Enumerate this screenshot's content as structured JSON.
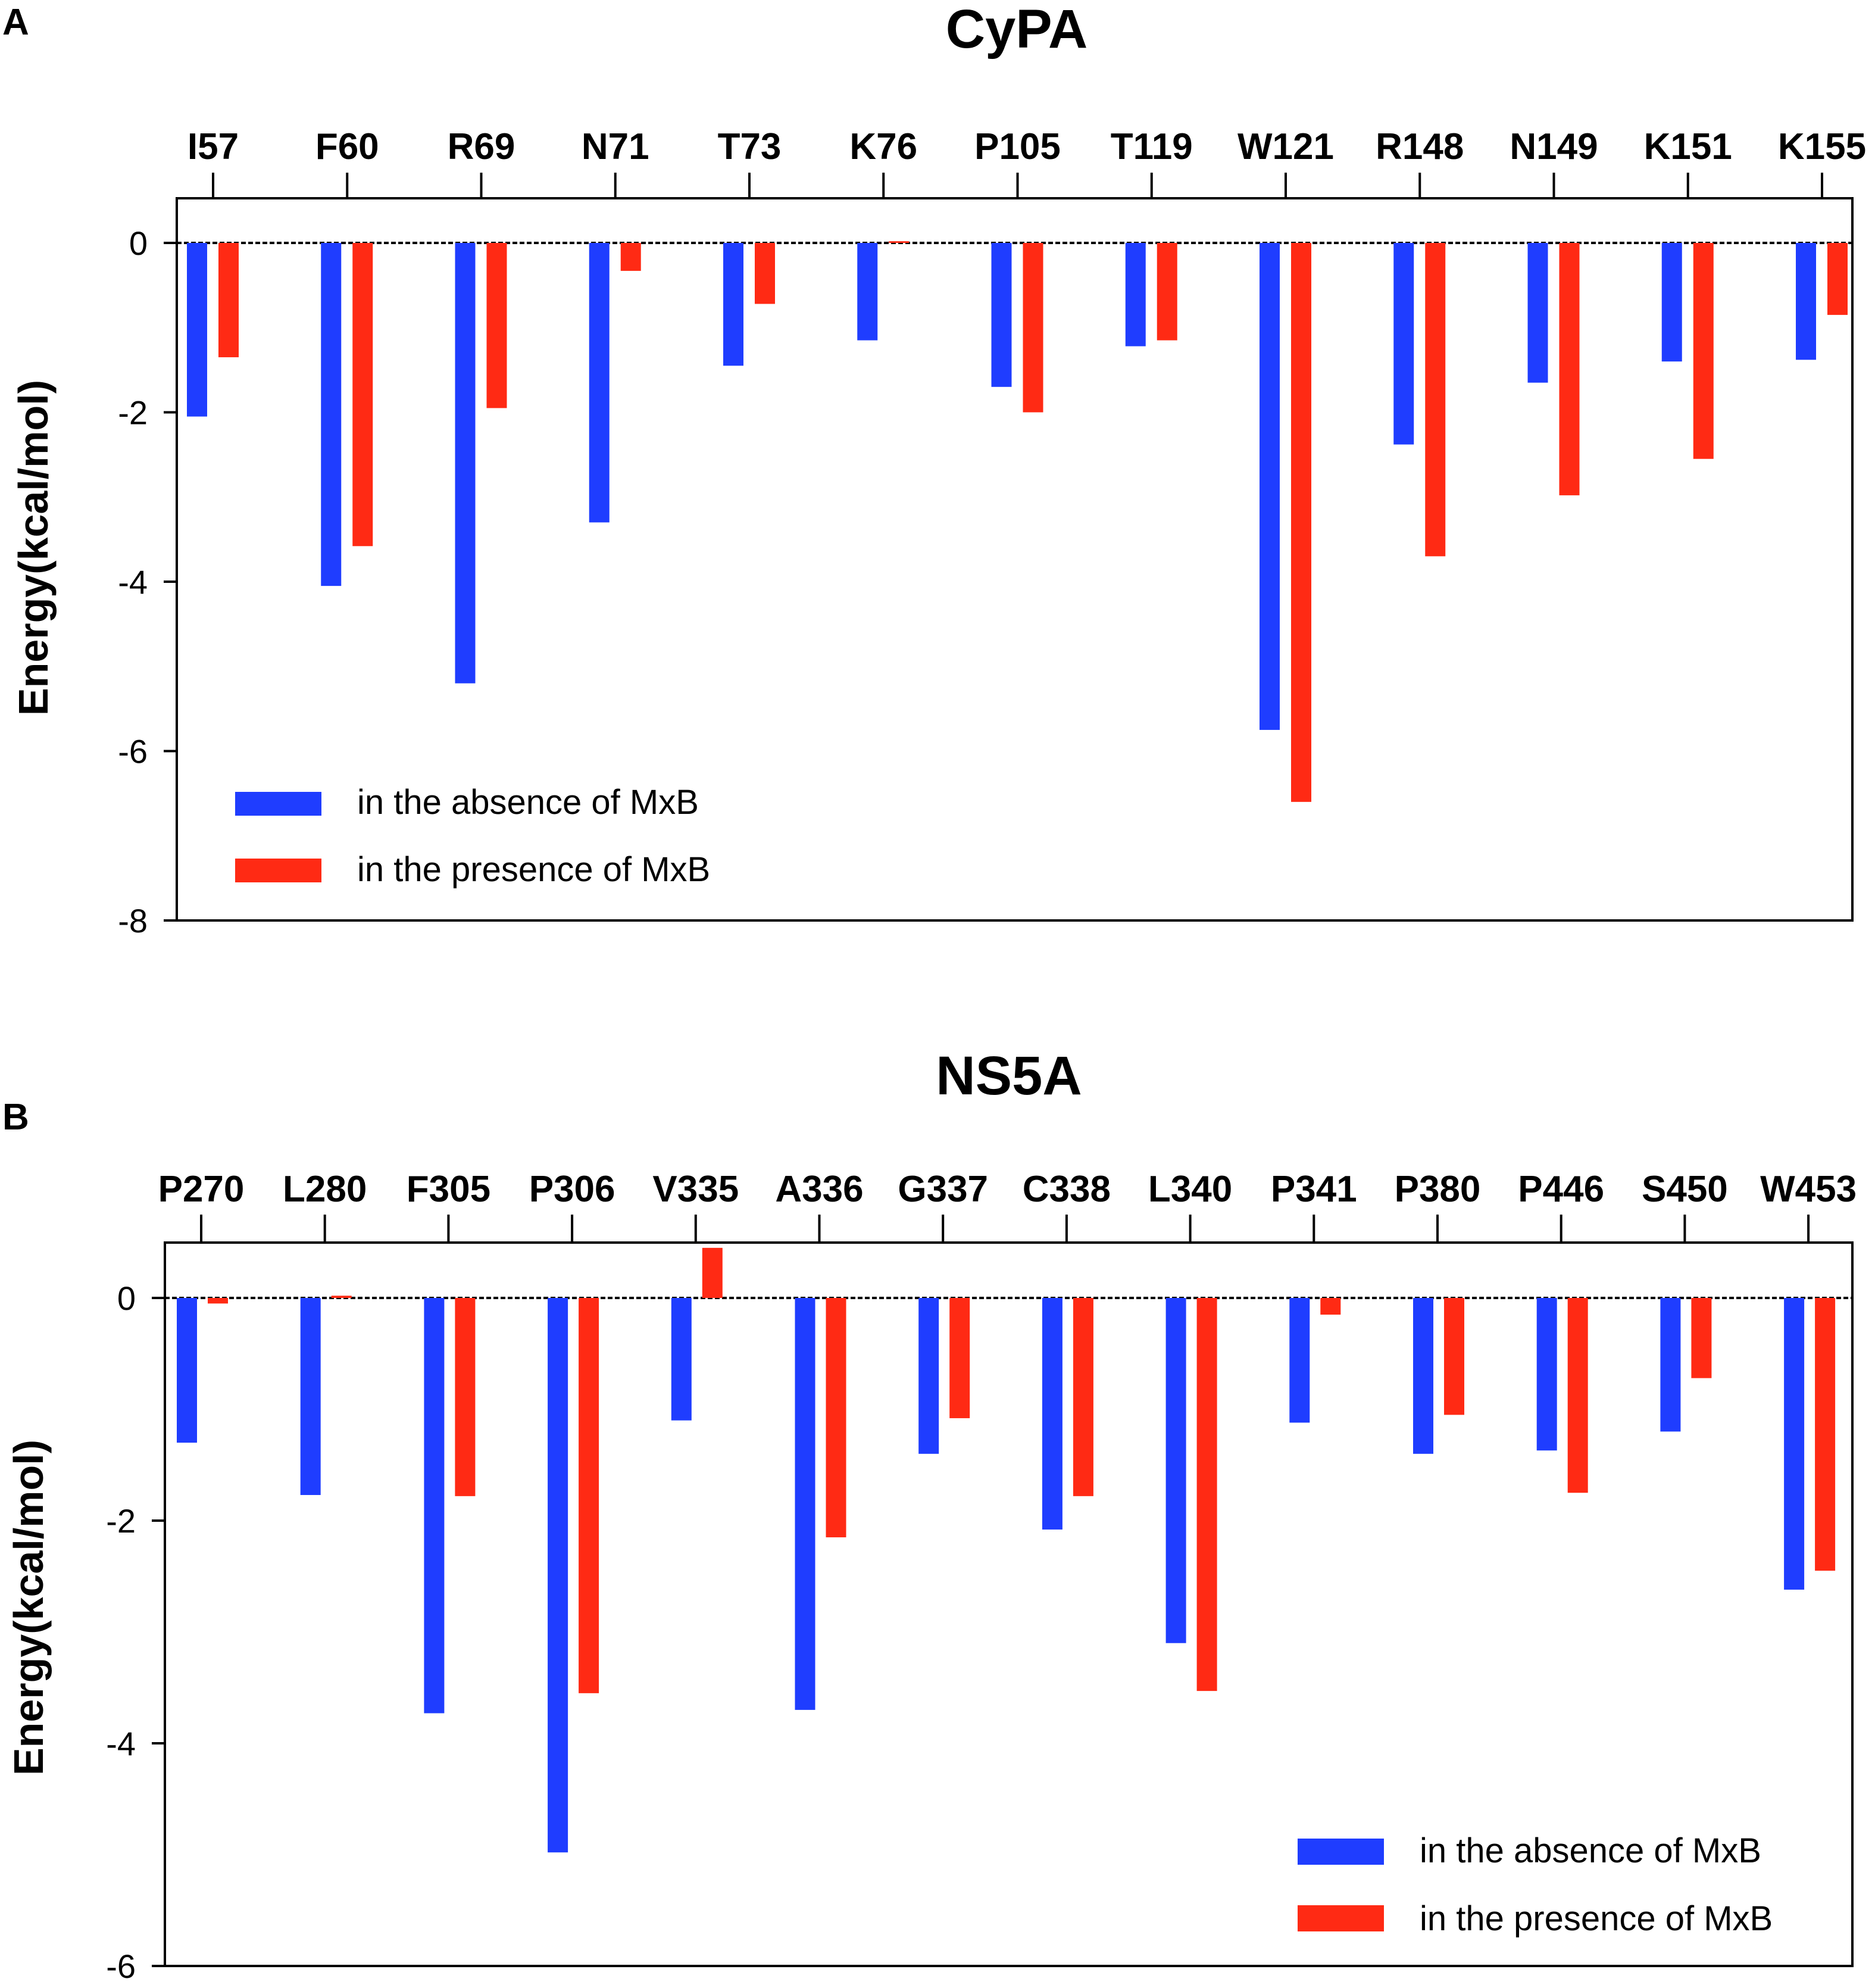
{
  "panels": [
    {
      "letter": "A"
    },
    {
      "letter": "B"
    }
  ],
  "legend": {
    "absence_color": "#1f3dff",
    "presence_color": "#ff2a14"
  },
  "chart_data": [
    {
      "type": "bar",
      "title": "CyPA",
      "xlabel": "",
      "ylabel": "Energy(kcal/mol)",
      "ylim": [
        -8,
        0.5
      ],
      "yticks": [
        0,
        -2,
        -4,
        -6,
        -8
      ],
      "categories": [
        "I57",
        "F60",
        "R69",
        "N71",
        "T73",
        "K76",
        "P105",
        "T119",
        "W121",
        "R148",
        "N149",
        "K151",
        "K155"
      ],
      "series": [
        {
          "name": "in the absence of MxB",
          "values": [
            -2.05,
            -4.05,
            -5.2,
            -3.3,
            -1.45,
            -1.15,
            -1.7,
            -1.22,
            -5.75,
            -2.38,
            -1.65,
            -1.4,
            -1.38
          ]
        },
        {
          "name": "in the presence of MxB",
          "values": [
            -1.35,
            -3.58,
            -1.95,
            -0.33,
            -0.72,
            0.02,
            -2.0,
            -1.15,
            -6.6,
            -3.7,
            -2.98,
            -2.55,
            -0.85
          ]
        }
      ],
      "legend_position": "bottom-left"
    },
    {
      "type": "bar",
      "title": "NS5A",
      "xlabel": "",
      "ylabel": "Energy(kcal/mol)",
      "ylim": [
        -6,
        0.5
      ],
      "yticks": [
        0,
        -2,
        -4,
        -6
      ],
      "categories": [
        "P270",
        "L280",
        "F305",
        "P306",
        "V335",
        "A336",
        "G337",
        "C338",
        "L340",
        "P341",
        "P380",
        "P446",
        "S450",
        "W453"
      ],
      "series": [
        {
          "name": "in the absence of MxB",
          "values": [
            -1.3,
            -1.77,
            -3.73,
            -4.98,
            -1.1,
            -3.7,
            -1.4,
            -2.08,
            -3.1,
            -1.12,
            -1.4,
            -1.37,
            -1.2,
            -2.62
          ]
        },
        {
          "name": "in the presence of MxB",
          "values": [
            -0.05,
            0.02,
            -1.78,
            -3.55,
            0.45,
            -2.15,
            -1.08,
            -1.78,
            -3.53,
            -0.15,
            -1.05,
            -1.75,
            -0.72,
            -2.45
          ]
        }
      ],
      "legend_position": "bottom-right"
    }
  ]
}
